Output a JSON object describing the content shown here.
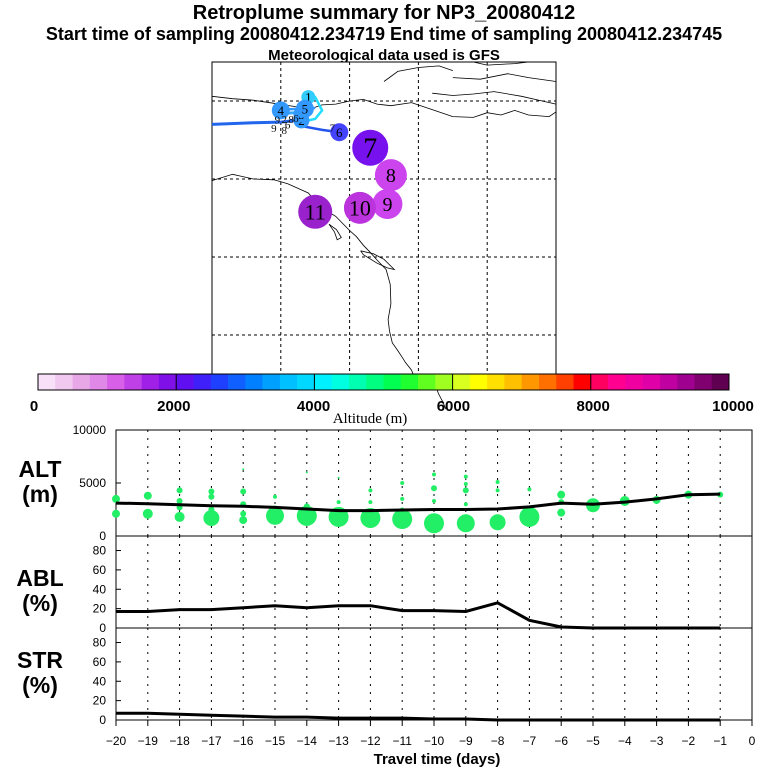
{
  "header": {
    "title": "Retroplume summary for NP3_20080412",
    "sampling_line": "Start time of sampling 20080412.234719     End time of sampling 20080412.234745",
    "met_line": "Meteorological data used is GFS"
  },
  "map": {
    "plume_labels": [
      {
        "label": "1",
        "color": "#33ccff",
        "lon": -136,
        "lat": 70.5
      },
      {
        "label": "2",
        "color": "#3399ff",
        "lon": -137,
        "lat": 67.5
      },
      {
        "label": "3",
        "color": "#3399ff",
        "lon": -137,
        "lat": 68.3
      },
      {
        "label": "4",
        "color": "#3399ff",
        "lon": -140,
        "lat": 68.8
      },
      {
        "label": "5",
        "color": "#3399ff",
        "lon": -136.5,
        "lat": 69.0
      },
      {
        "label": "6",
        "color": "#4444ff",
        "lon": -131.5,
        "lat": 66.0
      },
      {
        "label": "7",
        "color": "#7711ee",
        "lon": -127,
        "lat": 64.0
      },
      {
        "label": "8",
        "color": "#cc44ee",
        "lon": -124,
        "lat": 60.5
      },
      {
        "label": "9",
        "color": "#cc44ee",
        "lon": -124.5,
        "lat": 56.8
      },
      {
        "label": "10",
        "color": "#bb33dd",
        "lon": -128.5,
        "lat": 56.3
      },
      {
        "label": "11",
        "color": "#9922cc",
        "lon": -135,
        "lat": 55.8
      }
    ],
    "small_labels": [
      "9",
      "2",
      "8",
      "6",
      "6",
      "9",
      "7",
      "8"
    ]
  },
  "colorbar": {
    "tick_labels": [
      "0",
      "2000",
      "4000",
      "6000",
      "8000",
      "10000"
    ],
    "label": "Altitude (m)",
    "colors": [
      "#f8e0f8",
      "#f0c8f0",
      "#e8a8e8",
      "#e088e8",
      "#d860e8",
      "#c040e8",
      "#a020e8",
      "#8010e8",
      "#6010f0",
      "#4020f8",
      "#2040ff",
      "#1060ff",
      "#0080ff",
      "#00a0ff",
      "#00c0ff",
      "#00d8ff",
      "#00f0ff",
      "#00ffe0",
      "#00ffb0",
      "#00ff80",
      "#00ff50",
      "#20ff30",
      "#60ff20",
      "#a0ff20",
      "#d8ff20",
      "#ffff00",
      "#ffe000",
      "#ffc000",
      "#ff9800",
      "#ff7000",
      "#ff4000",
      "#ff0000",
      "#ff0060",
      "#ff0090",
      "#f000a0",
      "#e000a8",
      "#c000a0",
      "#a00090",
      "#800070",
      "#600050"
    ]
  },
  "panels": {
    "alt": {
      "label_top": "ALT",
      "label_bottom": "(m)"
    },
    "abl": {
      "label_top": "ABL",
      "label_bottom": "(%)"
    },
    "str": {
      "label_top": "STR",
      "label_bottom": "(%)"
    }
  },
  "chart_data": {
    "type": "line",
    "xlabel": "Travel time (days)",
    "x_ticks": [
      "−20",
      "−19",
      "−18",
      "−17",
      "−16",
      "−15",
      "−14",
      "−13",
      "−12",
      "−11",
      "−10",
      "−9",
      "−8",
      "−7",
      "−6",
      "−5",
      "−4",
      "−3",
      "−2",
      "−1",
      "0"
    ],
    "xlim": [
      -20,
      0
    ],
    "alt": {
      "ylabel": "ALT (m)",
      "ylim": [
        0,
        10000
      ],
      "tick_labels": [
        "0",
        "5000",
        "10000"
      ],
      "x": [
        -20,
        -19,
        -18,
        -17,
        -16,
        -15,
        -14,
        -13,
        -12,
        -11,
        -10,
        -9,
        -8,
        -7,
        -6,
        -5,
        -4,
        -3,
        -2,
        -1
      ],
      "mean": [
        3100,
        3050,
        2950,
        2850,
        2800,
        2700,
        2550,
        2400,
        2400,
        2450,
        2500,
        2500,
        2550,
        2750,
        3100,
        3000,
        3200,
        3500,
        3900,
        3950
      ],
      "bubbles": [
        {
          "x": -20,
          "y": 3500,
          "s": 4
        },
        {
          "x": -20,
          "y": 2100,
          "s": 4
        },
        {
          "x": -19,
          "y": 3800,
          "s": 4
        },
        {
          "x": -19,
          "y": 2100,
          "s": 5
        },
        {
          "x": -18,
          "y": 4300,
          "s": 3
        },
        {
          "x": -18,
          "y": 3300,
          "s": 3
        },
        {
          "x": -18,
          "y": 2700,
          "s": 3
        },
        {
          "x": -18,
          "y": 1800,
          "s": 5
        },
        {
          "x": -17,
          "y": 4200,
          "s": 3
        },
        {
          "x": -17,
          "y": 3700,
          "s": 3
        },
        {
          "x": -17,
          "y": 2500,
          "s": 3
        },
        {
          "x": -17,
          "y": 1700,
          "s": 8
        },
        {
          "x": -16,
          "y": 6300,
          "s": 1
        },
        {
          "x": -16,
          "y": 4200,
          "s": 3
        },
        {
          "x": -16,
          "y": 3000,
          "s": 3
        },
        {
          "x": -16,
          "y": 2100,
          "s": 3
        },
        {
          "x": -16,
          "y": 1500,
          "s": 4
        },
        {
          "x": -15,
          "y": 3700,
          "s": 2
        },
        {
          "x": -15,
          "y": 2600,
          "s": 3
        },
        {
          "x": -15,
          "y": 1900,
          "s": 9
        },
        {
          "x": -14,
          "y": 6000,
          "s": 1
        },
        {
          "x": -14,
          "y": 2800,
          "s": 3
        },
        {
          "x": -14,
          "y": 1900,
          "s": 10
        },
        {
          "x": -13,
          "y": 5500,
          "s": 1
        },
        {
          "x": -13,
          "y": 3200,
          "s": 2
        },
        {
          "x": -13,
          "y": 1800,
          "s": 10
        },
        {
          "x": -12,
          "y": 4300,
          "s": 2
        },
        {
          "x": -12,
          "y": 3200,
          "s": 2
        },
        {
          "x": -12,
          "y": 1700,
          "s": 10
        },
        {
          "x": -11,
          "y": 5000,
          "s": 2
        },
        {
          "x": -11,
          "y": 3500,
          "s": 2
        },
        {
          "x": -11,
          "y": 2500,
          "s": 2
        },
        {
          "x": -11,
          "y": 1600,
          "s": 10
        },
        {
          "x": -10,
          "y": 5800,
          "s": 2
        },
        {
          "x": -10,
          "y": 4500,
          "s": 3
        },
        {
          "x": -10,
          "y": 3300,
          "s": 2
        },
        {
          "x": -10,
          "y": 1200,
          "s": 10
        },
        {
          "x": -9,
          "y": 5600,
          "s": 2
        },
        {
          "x": -9,
          "y": 4900,
          "s": 2
        },
        {
          "x": -9,
          "y": 4300,
          "s": 3
        },
        {
          "x": -9,
          "y": 3000,
          "s": 2
        },
        {
          "x": -9,
          "y": 1200,
          "s": 9
        },
        {
          "x": -8,
          "y": 5100,
          "s": 2
        },
        {
          "x": -8,
          "y": 4300,
          "s": 2
        },
        {
          "x": -8,
          "y": 1300,
          "s": 8
        },
        {
          "x": -7,
          "y": 4400,
          "s": 2
        },
        {
          "x": -7,
          "y": 1800,
          "s": 10
        },
        {
          "x": -6,
          "y": 3900,
          "s": 4
        },
        {
          "x": -6,
          "y": 3200,
          "s": 3
        },
        {
          "x": -6,
          "y": 2200,
          "s": 4
        },
        {
          "x": -5,
          "y": 2900,
          "s": 7
        },
        {
          "x": -4,
          "y": 3300,
          "s": 5
        },
        {
          "x": -3,
          "y": 3400,
          "s": 4
        },
        {
          "x": -2,
          "y": 3900,
          "s": 4
        },
        {
          "x": -1,
          "y": 3900,
          "s": 3
        }
      ]
    },
    "abl": {
      "ylabel": "ABL (%)",
      "ylim": [
        0,
        95
      ],
      "tick_labels": [
        "0",
        "20",
        "40",
        "60",
        "80"
      ],
      "x": [
        -20,
        -19,
        -18,
        -17,
        -16,
        -15,
        -14,
        -13,
        -12,
        -11,
        -10,
        -9,
        -8,
        -7,
        -6,
        -5,
        -4,
        -3,
        -2,
        -1
      ],
      "values": [
        17,
        17,
        19,
        19,
        21,
        23,
        21,
        23,
        23,
        18,
        18,
        17,
        26,
        8,
        1,
        0,
        0,
        0,
        0,
        0
      ]
    },
    "str": {
      "ylabel": "STR (%)",
      "ylim": [
        0,
        95
      ],
      "tick_labels": [
        "0",
        "20",
        "40",
        "60",
        "80"
      ],
      "x": [
        -20,
        -19,
        -18,
        -17,
        -16,
        -15,
        -14,
        -13,
        -12,
        -11,
        -10,
        -9,
        -8,
        -7,
        -6,
        -5,
        -4,
        -3,
        -2,
        -1
      ],
      "values": [
        7,
        7,
        6,
        5,
        4,
        3,
        3,
        2,
        2,
        2,
        1,
        1,
        0,
        0,
        0,
        0,
        0,
        0,
        0,
        0
      ]
    }
  }
}
